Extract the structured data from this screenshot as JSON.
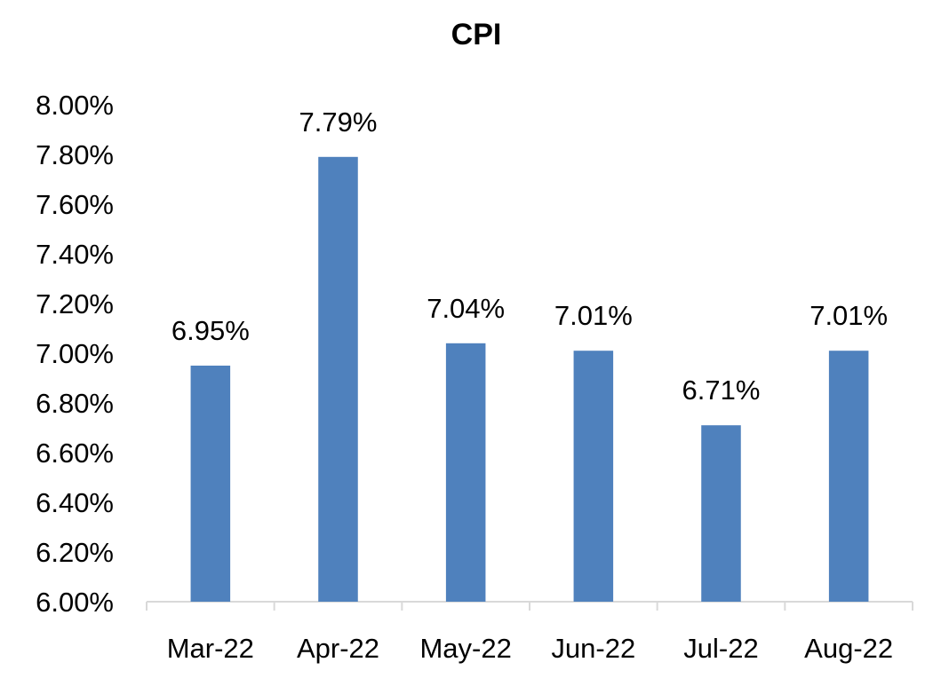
{
  "chart_data": {
    "type": "bar",
    "title": "CPI",
    "xlabel": "",
    "ylabel": "",
    "categories": [
      "Mar-22",
      "Apr-22",
      "May-22",
      "Jun-22",
      "Jul-22",
      "Aug-22"
    ],
    "values": [
      6.95,
      7.79,
      7.04,
      7.01,
      6.71,
      7.01
    ],
    "data_labels": [
      "6.95%",
      "7.79%",
      "7.04%",
      "7.01%",
      "6.71%",
      "7.01%"
    ],
    "ylim": [
      6.0,
      8.0
    ],
    "yticks": [
      6.0,
      6.2,
      6.4,
      6.6,
      6.8,
      7.0,
      7.2,
      7.4,
      7.6,
      7.8,
      8.0
    ],
    "ytick_labels": [
      "6.00%",
      "6.20%",
      "6.40%",
      "6.60%",
      "6.80%",
      "7.00%",
      "7.20%",
      "7.40%",
      "7.60%",
      "7.80%",
      "8.00%"
    ],
    "grid": false,
    "legend": "none",
    "bar_color": "#4f81bd",
    "axis_color": "#d9d9d9"
  }
}
